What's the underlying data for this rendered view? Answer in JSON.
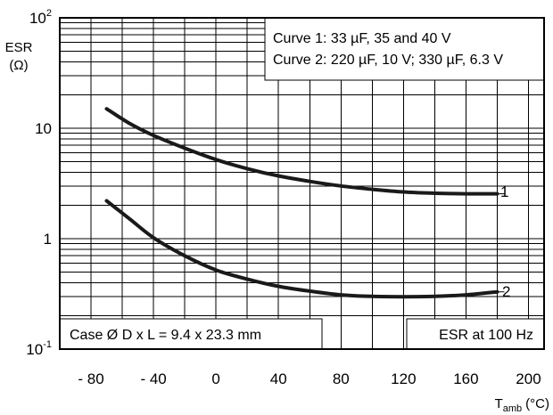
{
  "chart_data": {
    "type": "line",
    "title": "",
    "xlabel": "T",
    "xlabel_sub": "amb",
    "xlabel_unit": "(°C)",
    "ylabel": "ESR",
    "ylabel_unit": "(Ω)",
    "xlim": [
      -100,
      210
    ],
    "ylim": [
      0.1,
      100
    ],
    "yscale": "log",
    "grid": true,
    "x_ticks": [
      {
        "value": -80,
        "label": "- 80"
      },
      {
        "value": -40,
        "label": "- 40"
      },
      {
        "value": 0,
        "label": "0"
      },
      {
        "value": 40,
        "label": "40"
      },
      {
        "value": 80,
        "label": "80"
      },
      {
        "value": 120,
        "label": "120"
      },
      {
        "value": 160,
        "label": "160"
      },
      {
        "value": 200,
        "label": "200"
      }
    ],
    "y_ticks": [
      {
        "value": 100,
        "base": "10",
        "exp": "2"
      },
      {
        "value": 10,
        "label": "10"
      },
      {
        "value": 1,
        "label": "1"
      },
      {
        "value": 0.1,
        "base": "10",
        "exp": "-1"
      }
    ],
    "series": [
      {
        "name": "1",
        "x": [
          -70,
          -55,
          -40,
          -20,
          0,
          20,
          40,
          60,
          80,
          100,
          120,
          140,
          160,
          180
        ],
        "y": [
          15.0,
          11.0,
          8.6,
          6.6,
          5.2,
          4.3,
          3.7,
          3.3,
          3.0,
          2.8,
          2.65,
          2.58,
          2.55,
          2.55
        ]
      },
      {
        "name": "2",
        "x": [
          -70,
          -55,
          -40,
          -20,
          0,
          20,
          40,
          60,
          80,
          100,
          120,
          140,
          160,
          180
        ],
        "y": [
          2.2,
          1.5,
          1.02,
          0.7,
          0.52,
          0.43,
          0.37,
          0.335,
          0.31,
          0.3,
          0.298,
          0.3,
          0.31,
          0.33
        ]
      }
    ],
    "annotations": [
      "Curve 1: 33 µF, 35 and 40 V",
      "Curve 2: 220 µF, 10 V; 330 µF, 6.3 V",
      "Case Ø D x L = 9.4 x 23.3 mm",
      "ESR at 100 Hz"
    ]
  }
}
